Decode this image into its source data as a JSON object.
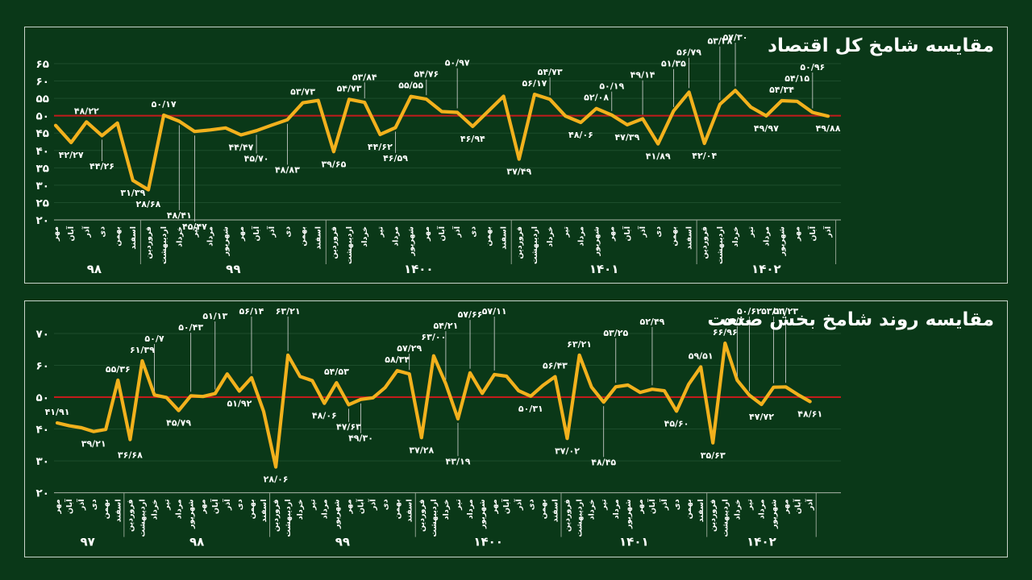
{
  "page": {
    "background": "#0a3818",
    "panel_border": "#c9d4c9",
    "text_color": "#ffffff",
    "grid_color": "#1d4d2c",
    "axis_color": "#8fa08f",
    "callout_color": "#d8d8d8"
  },
  "chart_data": [
    {
      "type": "line",
      "title": "مقایسه شامخ کل اقتصاد",
      "line_color": "#f2b11d",
      "reference_line": {
        "value": 50,
        "color": "#c41b1b"
      },
      "ylim": [
        20,
        65
      ],
      "yticks": [
        {
          "value": 65,
          "label_fa": "۶۵"
        },
        {
          "value": 60,
          "label_fa": "۶۰"
        },
        {
          "value": 55,
          "label_fa": "۵۵"
        },
        {
          "value": 50,
          "label_fa": "۵۰"
        },
        {
          "value": 45,
          "label_fa": "۴۵"
        },
        {
          "value": 40,
          "label_fa": "۴۰"
        },
        {
          "value": 35,
          "label_fa": "۳۵"
        },
        {
          "value": 30,
          "label_fa": "۳۰"
        },
        {
          "value": 25,
          "label_fa": "۲۵"
        },
        {
          "value": 20,
          "label_fa": "۲۰"
        }
      ],
      "year_groups": [
        {
          "year_fa": "۹۸",
          "count": 6
        },
        {
          "year_fa": "۹۹",
          "count": 12
        },
        {
          "year_fa": "۱۴۰۰",
          "count": 12
        },
        {
          "year_fa": "۱۴۰۱",
          "count": 12
        },
        {
          "year_fa": "۱۴۰۲",
          "count": 9
        }
      ],
      "points": [
        {
          "month_fa": "مهر",
          "value": 47.2,
          "label_fa": null
        },
        {
          "month_fa": "آبان",
          "value": 42.27,
          "label_fa": "۴۲/۲۷"
        },
        {
          "month_fa": "آذر",
          "value": 48.22,
          "label_fa": "۴۸/۲۲"
        },
        {
          "month_fa": "دی",
          "value": 44.26,
          "label_fa": "۴۴/۲۶"
        },
        {
          "month_fa": "بهمن",
          "value": 47.9,
          "label_fa": null
        },
        {
          "month_fa": "اسفند",
          "value": 31.39,
          "label_fa": "۳۱/۳۹"
        },
        {
          "month_fa": "فروردین",
          "value": 28.68,
          "label_fa": "۲۸/۶۸"
        },
        {
          "month_fa": "اردیبهشت",
          "value": 50.17,
          "label_fa": "۵۰/۱۷"
        },
        {
          "month_fa": "خرداد",
          "value": 48.41,
          "label_fa": "۴۸/۴۱"
        },
        {
          "month_fa": "تیر",
          "value": 45.47,
          "label_fa": "۴۵/۴۷"
        },
        {
          "month_fa": "مرداد",
          "value": 45.9,
          "label_fa": null
        },
        {
          "month_fa": "شهریور",
          "value": 46.5,
          "label_fa": null
        },
        {
          "month_fa": "مهر",
          "value": 44.47,
          "label_fa": "۴۴/۴۷"
        },
        {
          "month_fa": "آبان",
          "value": 45.7,
          "label_fa": "۴۵/۷۰"
        },
        {
          "month_fa": "آذر",
          "value": 47.3,
          "label_fa": null
        },
        {
          "month_fa": "دی",
          "value": 48.83,
          "label_fa": "۴۸/۸۳"
        },
        {
          "month_fa": "بهمن",
          "value": 53.73,
          "label_fa": "۵۳/۷۳"
        },
        {
          "month_fa": "اسفند",
          "value": 54.4,
          "label_fa": null
        },
        {
          "month_fa": "فروردین",
          "value": 39.65,
          "label_fa": "۳۹/۶۵"
        },
        {
          "month_fa": "اردیبهشت",
          "value": 54.73,
          "label_fa": "۵۴/۷۳"
        },
        {
          "month_fa": "خرداد",
          "value": 53.84,
          "label_fa": "۵۳/۸۴"
        },
        {
          "month_fa": "تیر",
          "value": 44.62,
          "label_fa": "۴۴/۶۲"
        },
        {
          "month_fa": "مرداد",
          "value": 46.59,
          "label_fa": "۴۶/۵۹"
        },
        {
          "month_fa": "شهریور",
          "value": 55.55,
          "label_fa": "۵۵/۵۵"
        },
        {
          "month_fa": "مهر",
          "value": 54.76,
          "label_fa": "۵۴/۷۶"
        },
        {
          "month_fa": "آبان",
          "value": 51.2,
          "label_fa": null
        },
        {
          "month_fa": "آذر",
          "value": 50.97,
          "label_fa": "۵۰/۹۷"
        },
        {
          "month_fa": "دی",
          "value": 46.94,
          "label_fa": "۴۶/۹۴"
        },
        {
          "month_fa": "بهمن",
          "value": 51.3,
          "label_fa": null
        },
        {
          "month_fa": "اسفند",
          "value": 55.6,
          "label_fa": null
        },
        {
          "month_fa": "فروردین",
          "value": 37.49,
          "label_fa": "۳۷/۴۹"
        },
        {
          "month_fa": "اردیبهشت",
          "value": 56.17,
          "label_fa": "۵۶/۱۷"
        },
        {
          "month_fa": "خرداد",
          "value": 54.73,
          "label_fa": "۵۴/۷۳"
        },
        {
          "month_fa": "تیر",
          "value": 49.9,
          "label_fa": null
        },
        {
          "month_fa": "مرداد",
          "value": 48.06,
          "label_fa": "۴۸/۰۶"
        },
        {
          "month_fa": "شهریور",
          "value": 52.08,
          "label_fa": "۵۲/۰۸"
        },
        {
          "month_fa": "مهر",
          "value": 50.19,
          "label_fa": "۵۰/۱۹"
        },
        {
          "month_fa": "آبان",
          "value": 47.39,
          "label_fa": "۴۷/۳۹"
        },
        {
          "month_fa": "آذر",
          "value": 49.14,
          "label_fa": "۴۹/۱۴"
        },
        {
          "month_fa": "دی",
          "value": 41.89,
          "label_fa": "۴۱/۸۹"
        },
        {
          "month_fa": "بهمن",
          "value": 51.35,
          "label_fa": "۵۱/۳۵"
        },
        {
          "month_fa": "اسفند",
          "value": 56.79,
          "label_fa": "۵۶/۷۹"
        },
        {
          "month_fa": "فروردین",
          "value": 42.04,
          "label_fa": "۴۲/۰۴"
        },
        {
          "month_fa": "اردیبهشت",
          "value": 53.28,
          "label_fa": "۵۳/۲۸"
        },
        {
          "month_fa": "خرداد",
          "value": 57.3,
          "label_fa": "۵۷/۳۰"
        },
        {
          "month_fa": "تیر",
          "value": 52.5,
          "label_fa": null
        },
        {
          "month_fa": "مرداد",
          "value": 49.97,
          "label_fa": "۴۹/۹۷"
        },
        {
          "month_fa": "شهریور",
          "value": 54.34,
          "label_fa": "۵۴/۳۴"
        },
        {
          "month_fa": "مهر",
          "value": 54.15,
          "label_fa": "۵۴/۱۵"
        },
        {
          "month_fa": "آبان",
          "value": 50.96,
          "label_fa": "۵۰/۹۶"
        },
        {
          "month_fa": "آذر",
          "value": 49.88,
          "label_fa": "۴۹/۸۸"
        }
      ]
    },
    {
      "type": "line",
      "title": "مقایسه روند شامخ بخش صنعت",
      "line_color": "#f2b11d",
      "reference_line": {
        "value": 50,
        "color": "#c41b1b"
      },
      "ylim": [
        20,
        70
      ],
      "yticks": [
        {
          "value": 70,
          "label_fa": "۷۰"
        },
        {
          "value": 60,
          "label_fa": "۶۰"
        },
        {
          "value": 50,
          "label_fa": "۵۰"
        },
        {
          "value": 40,
          "label_fa": "۴۰"
        },
        {
          "value": 30,
          "label_fa": "۳۰"
        },
        {
          "value": 20,
          "label_fa": "۲۰"
        }
      ],
      "year_groups": [
        {
          "year_fa": "۹۷",
          "count": 6
        },
        {
          "year_fa": "۹۸",
          "count": 12
        },
        {
          "year_fa": "۹۹",
          "count": 12
        },
        {
          "year_fa": "۱۴۰۰",
          "count": 12
        },
        {
          "year_fa": "۱۴۰۱",
          "count": 12
        },
        {
          "year_fa": "۱۴۰۲",
          "count": 9
        }
      ],
      "points": [
        {
          "month_fa": "مهر",
          "value": 41.91,
          "label_fa": "۴۱/۹۱"
        },
        {
          "month_fa": "آبان",
          "value": 41.0,
          "label_fa": null
        },
        {
          "month_fa": "آذر",
          "value": 40.4,
          "label_fa": null
        },
        {
          "month_fa": "دی",
          "value": 39.21,
          "label_fa": "۳۹/۲۱"
        },
        {
          "month_fa": "بهمن",
          "value": 39.9,
          "label_fa": null
        },
        {
          "month_fa": "اسفند",
          "value": 55.36,
          "label_fa": "۵۵/۳۶"
        },
        {
          "month_fa": "فروردین",
          "value": 36.68,
          "label_fa": "۳۶/۶۸"
        },
        {
          "month_fa": "اردیبهشت",
          "value": 61.39,
          "label_fa": "۶۱/۳۹"
        },
        {
          "month_fa": "خرداد",
          "value": 50.7,
          "label_fa": "۵۰/۷"
        },
        {
          "month_fa": "تیر",
          "value": 49.9,
          "label_fa": null
        },
        {
          "month_fa": "مرداد",
          "value": 45.79,
          "label_fa": "۴۵/۷۹"
        },
        {
          "month_fa": "شهریور",
          "value": 50.43,
          "label_fa": "۵۰/۴۳"
        },
        {
          "month_fa": "مهر",
          "value": 50.2,
          "label_fa": null
        },
        {
          "month_fa": "آبان",
          "value": 51.13,
          "label_fa": "۵۱/۱۳"
        },
        {
          "month_fa": "آذر",
          "value": 57.3,
          "label_fa": null
        },
        {
          "month_fa": "دی",
          "value": 51.92,
          "label_fa": "۵۱/۹۲"
        },
        {
          "month_fa": "بهمن",
          "value": 56.14,
          "label_fa": "۵۶/۱۴"
        },
        {
          "month_fa": "اسفند",
          "value": 45.5,
          "label_fa": null
        },
        {
          "month_fa": "فروردین",
          "value": 28.06,
          "label_fa": "۲۸/۰۶"
        },
        {
          "month_fa": "اردیبهشت",
          "value": 63.21,
          "label_fa": "۶۳/۲۱"
        },
        {
          "month_fa": "خرداد",
          "value": 56.5,
          "label_fa": null
        },
        {
          "month_fa": "تیر",
          "value": 55.2,
          "label_fa": null
        },
        {
          "month_fa": "مرداد",
          "value": 48.06,
          "label_fa": "۴۸/۰۶"
        },
        {
          "month_fa": "شهریور",
          "value": 54.53,
          "label_fa": "۵۴/۵۳"
        },
        {
          "month_fa": "مهر",
          "value": 47.63,
          "label_fa": "۴۷/۶۳"
        },
        {
          "month_fa": "آبان",
          "value": 49.3,
          "label_fa": "۴۹/۳۰"
        },
        {
          "month_fa": "آذر",
          "value": 49.8,
          "label_fa": null
        },
        {
          "month_fa": "دی",
          "value": 53.0,
          "label_fa": null
        },
        {
          "month_fa": "بهمن",
          "value": 58.34,
          "label_fa": "۵۸/۳۴"
        },
        {
          "month_fa": "اسفند",
          "value": 57.29,
          "label_fa": "۵۷/۲۹"
        },
        {
          "month_fa": "فروردین",
          "value": 37.28,
          "label_fa": "۳۷/۲۸"
        },
        {
          "month_fa": "اردیبهشت",
          "value": 63.0,
          "label_fa": "۶۳/۰۰"
        },
        {
          "month_fa": "خرداد",
          "value": 54.21,
          "label_fa": "۵۴/۲۱"
        },
        {
          "month_fa": "تیر",
          "value": 43.19,
          "label_fa": "۴۳/۱۹"
        },
        {
          "month_fa": "مرداد",
          "value": 57.66,
          "label_fa": "۵۷/۶۶"
        },
        {
          "month_fa": "شهریور",
          "value": 51.2,
          "label_fa": null
        },
        {
          "month_fa": "مهر",
          "value": 57.11,
          "label_fa": "۵۷/۱۱"
        },
        {
          "month_fa": "آبان",
          "value": 56.6,
          "label_fa": null
        },
        {
          "month_fa": "آذر",
          "value": 52.0,
          "label_fa": null
        },
        {
          "month_fa": "دی",
          "value": 50.31,
          "label_fa": "۵۰/۳۱"
        },
        {
          "month_fa": "بهمن",
          "value": 53.7,
          "label_fa": null
        },
        {
          "month_fa": "اسفند",
          "value": 56.43,
          "label_fa": "۵۶/۴۳"
        },
        {
          "month_fa": "فروردین",
          "value": 37.02,
          "label_fa": "۳۷/۰۲"
        },
        {
          "month_fa": "اردیبهشت",
          "value": 63.21,
          "label_fa": "۶۳/۲۱"
        },
        {
          "month_fa": "خرداد",
          "value": 53.2,
          "label_fa": null
        },
        {
          "month_fa": "تیر",
          "value": 48.45,
          "label_fa": "۴۸/۴۵"
        },
        {
          "month_fa": "مرداد",
          "value": 53.25,
          "label_fa": "۵۳/۲۵"
        },
        {
          "month_fa": "شهریور",
          "value": 53.8,
          "label_fa": null
        },
        {
          "month_fa": "مهر",
          "value": 51.5,
          "label_fa": null
        },
        {
          "month_fa": "آبان",
          "value": 52.49,
          "label_fa": "۵۲/۴۹"
        },
        {
          "month_fa": "آذر",
          "value": 52.0,
          "label_fa": null
        },
        {
          "month_fa": "دی",
          "value": 45.6,
          "label_fa": "۴۵/۶۰"
        },
        {
          "month_fa": "بهمن",
          "value": 54.0,
          "label_fa": null
        },
        {
          "month_fa": "اسفند",
          "value": 59.51,
          "label_fa": "۵۹/۵۱"
        },
        {
          "month_fa": "فروردین",
          "value": 35.63,
          "label_fa": "۳۵/۶۳"
        },
        {
          "month_fa": "اردیبهشت",
          "value": 66.96,
          "label_fa": "۶۶/۹۶"
        },
        {
          "month_fa": "خرداد",
          "value": 55.3,
          "label_fa": "۵۵/۳۰"
        },
        {
          "month_fa": "تیر",
          "value": 50.62,
          "label_fa": "۵۰/۶۲"
        },
        {
          "month_fa": "مرداد",
          "value": 47.72,
          "label_fa": "۴۷/۷۲"
        },
        {
          "month_fa": "شهریور",
          "value": 53.11,
          "label_fa": "۵۳/۱۱"
        },
        {
          "month_fa": "مهر",
          "value": 53.23,
          "label_fa": "۵۳/۲۳"
        },
        {
          "month_fa": "آبان",
          "value": 50.8,
          "label_fa": null
        },
        {
          "month_fa": "آذر",
          "value": 48.61,
          "label_fa": "۴۸/۶۱"
        }
      ]
    }
  ]
}
